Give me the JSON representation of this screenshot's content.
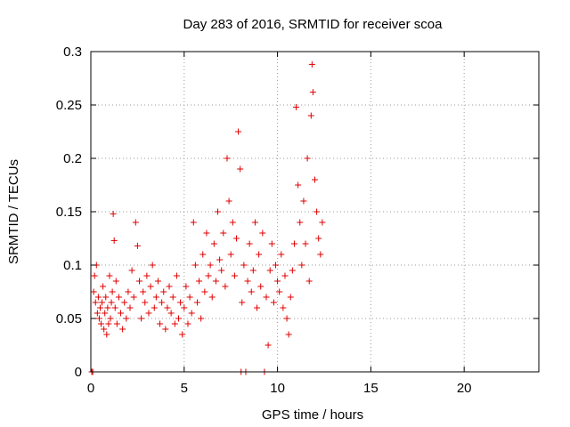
{
  "chart_data": {
    "type": "scatter",
    "title": "Day 283 of 2016, SRMTID for receiver scoa",
    "xlabel": "GPS time / hours",
    "ylabel": "SRMTID / TECUs",
    "xlim": [
      0,
      24
    ],
    "ylim": [
      0,
      0.3
    ],
    "xticks": [
      0,
      5,
      10,
      15,
      20
    ],
    "yticks": [
      0,
      0.05,
      0.1,
      0.15,
      0.2,
      0.25,
      0.3
    ],
    "xtick_labels": [
      "0",
      "5",
      "10",
      "15",
      "20"
    ],
    "ytick_labels": [
      "0",
      "0.05",
      "0.1",
      "0.15",
      "0.2",
      "0.25",
      "0.3"
    ],
    "grid": true,
    "marker": "+",
    "color": "#e00000",
    "series": [
      {
        "name": "SRMTID",
        "points": [
          [
            0.05,
            0.0
          ],
          [
            0.1,
            0.0
          ],
          [
            0.15,
            0.075
          ],
          [
            0.2,
            0.09
          ],
          [
            0.25,
            0.065
          ],
          [
            0.3,
            0.1
          ],
          [
            0.35,
            0.055
          ],
          [
            0.4,
            0.07
          ],
          [
            0.45,
            0.05
          ],
          [
            0.5,
            0.06
          ],
          [
            0.55,
            0.045
          ],
          [
            0.6,
            0.065
          ],
          [
            0.65,
            0.08
          ],
          [
            0.7,
            0.04
          ],
          [
            0.75,
            0.055
          ],
          [
            0.8,
            0.07
          ],
          [
            0.85,
            0.035
          ],
          [
            0.9,
            0.06
          ],
          [
            0.95,
            0.045
          ],
          [
            1.0,
            0.09
          ],
          [
            1.05,
            0.05
          ],
          [
            1.1,
            0.065
          ],
          [
            1.15,
            0.075
          ],
          [
            1.2,
            0.148
          ],
          [
            1.25,
            0.123
          ],
          [
            1.3,
            0.06
          ],
          [
            1.35,
            0.085
          ],
          [
            1.4,
            0.045
          ],
          [
            1.5,
            0.07
          ],
          [
            1.6,
            0.055
          ],
          [
            1.7,
            0.04
          ],
          [
            1.8,
            0.065
          ],
          [
            1.9,
            0.05
          ],
          [
            2.0,
            0.075
          ],
          [
            2.1,
            0.06
          ],
          [
            2.2,
            0.095
          ],
          [
            2.3,
            0.07
          ],
          [
            2.4,
            0.14
          ],
          [
            2.5,
            0.118
          ],
          [
            2.6,
            0.085
          ],
          [
            2.7,
            0.05
          ],
          [
            2.8,
            0.075
          ],
          [
            2.9,
            0.065
          ],
          [
            3.0,
            0.09
          ],
          [
            3.1,
            0.055
          ],
          [
            3.2,
            0.08
          ],
          [
            3.3,
            0.1
          ],
          [
            3.4,
            0.06
          ],
          [
            3.5,
            0.07
          ],
          [
            3.6,
            0.085
          ],
          [
            3.7,
            0.045
          ],
          [
            3.8,
            0.065
          ],
          [
            3.9,
            0.075
          ],
          [
            4.0,
            0.04
          ],
          [
            4.1,
            0.06
          ],
          [
            4.2,
            0.08
          ],
          [
            4.3,
            0.055
          ],
          [
            4.4,
            0.07
          ],
          [
            4.5,
            0.045
          ],
          [
            4.6,
            0.09
          ],
          [
            4.7,
            0.05
          ],
          [
            4.8,
            0.065
          ],
          [
            4.9,
            0.035
          ],
          [
            5.0,
            0.06
          ],
          [
            5.1,
            0.08
          ],
          [
            5.2,
            0.045
          ],
          [
            5.3,
            0.07
          ],
          [
            5.4,
            0.055
          ],
          [
            5.5,
            0.14
          ],
          [
            5.6,
            0.1
          ],
          [
            5.7,
            0.065
          ],
          [
            5.8,
            0.085
          ],
          [
            5.9,
            0.05
          ],
          [
            6.0,
            0.11
          ],
          [
            6.1,
            0.075
          ],
          [
            6.2,
            0.13
          ],
          [
            6.3,
            0.09
          ],
          [
            6.4,
            0.1
          ],
          [
            6.5,
            0.07
          ],
          [
            6.6,
            0.12
          ],
          [
            6.7,
            0.085
          ],
          [
            6.8,
            0.15
          ],
          [
            6.9,
            0.105
          ],
          [
            7.0,
            0.095
          ],
          [
            7.1,
            0.13
          ],
          [
            7.2,
            0.08
          ],
          [
            7.3,
            0.2
          ],
          [
            7.4,
            0.16
          ],
          [
            7.5,
            0.11
          ],
          [
            7.6,
            0.14
          ],
          [
            7.7,
            0.09
          ],
          [
            7.8,
            0.125
          ],
          [
            7.9,
            0.225
          ],
          [
            8.0,
            0.19
          ],
          [
            8.05,
            0.0
          ],
          [
            8.1,
            0.065
          ],
          [
            8.2,
            0.1
          ],
          [
            8.3,
            0.0
          ],
          [
            8.4,
            0.085
          ],
          [
            8.5,
            0.12
          ],
          [
            8.6,
            0.075
          ],
          [
            8.7,
            0.095
          ],
          [
            8.8,
            0.14
          ],
          [
            8.9,
            0.06
          ],
          [
            9.0,
            0.11
          ],
          [
            9.1,
            0.08
          ],
          [
            9.2,
            0.13
          ],
          [
            9.3,
            0.0
          ],
          [
            9.4,
            0.07
          ],
          [
            9.5,
            0.025
          ],
          [
            9.6,
            0.095
          ],
          [
            9.7,
            0.12
          ],
          [
            9.8,
            0.065
          ],
          [
            9.9,
            0.1
          ],
          [
            10.0,
            0.085
          ],
          [
            10.1,
            0.075
          ],
          [
            10.2,
            0.11
          ],
          [
            10.3,
            0.06
          ],
          [
            10.4,
            0.09
          ],
          [
            10.5,
            0.05
          ],
          [
            10.6,
            0.035
          ],
          [
            10.7,
            0.07
          ],
          [
            10.8,
            0.095
          ],
          [
            10.9,
            0.12
          ],
          [
            11.0,
            0.248
          ],
          [
            11.1,
            0.175
          ],
          [
            11.2,
            0.14
          ],
          [
            11.3,
            0.1
          ],
          [
            11.4,
            0.16
          ],
          [
            11.5,
            0.12
          ],
          [
            11.6,
            0.2
          ],
          [
            11.7,
            0.085
          ],
          [
            11.8,
            0.24
          ],
          [
            11.85,
            0.288
          ],
          [
            11.9,
            0.262
          ],
          [
            12.0,
            0.18
          ],
          [
            12.1,
            0.15
          ],
          [
            12.2,
            0.125
          ],
          [
            12.3,
            0.11
          ],
          [
            12.4,
            0.14
          ]
        ]
      }
    ]
  }
}
